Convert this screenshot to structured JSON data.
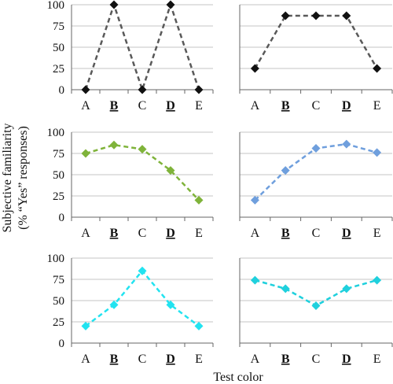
{
  "figure": {
    "xlabel": "Test color",
    "ylabel_line1": "Subjective familiarity",
    "ylabel_line2": "(% “Yes” responses)"
  },
  "chart_data": [
    {
      "type": "line",
      "categories": [
        "A",
        "B",
        "C",
        "D",
        "E"
      ],
      "emphasized_categories": [
        "B",
        "D"
      ],
      "ylim": [
        0,
        100
      ],
      "yticks": [
        0,
        25,
        50,
        75,
        100
      ],
      "grid": true,
      "series": [
        {
          "values": [
            0,
            100,
            0,
            100,
            0
          ],
          "color": "#595959"
        }
      ]
    },
    {
      "type": "line",
      "categories": [
        "A",
        "B",
        "C",
        "D",
        "E"
      ],
      "emphasized_categories": [
        "B",
        "D"
      ],
      "ylim": [
        0,
        100
      ],
      "yticks": [
        0,
        25,
        50,
        75,
        100
      ],
      "grid": true,
      "series": [
        {
          "values": [
            25,
            87,
            87,
            87,
            25
          ],
          "color": "#595959"
        }
      ]
    },
    {
      "type": "line",
      "categories": [
        "A",
        "B",
        "C",
        "D",
        "E"
      ],
      "emphasized_categories": [
        "B",
        "D"
      ],
      "ylim": [
        0,
        100
      ],
      "yticks": [
        0,
        25,
        50,
        75,
        100
      ],
      "grid": true,
      "series": [
        {
          "values": [
            75,
            85,
            80,
            55,
            20
          ],
          "color": "#7fb33a"
        }
      ]
    },
    {
      "type": "line",
      "categories": [
        "A",
        "B",
        "C",
        "D",
        "E"
      ],
      "emphasized_categories": [
        "B",
        "D"
      ],
      "ylim": [
        0,
        100
      ],
      "yticks": [
        0,
        25,
        50,
        75,
        100
      ],
      "grid": true,
      "series": [
        {
          "values": [
            20,
            55,
            81,
            86,
            76
          ],
          "color": "#6f9fdd"
        }
      ]
    },
    {
      "type": "line",
      "categories": [
        "A",
        "B",
        "C",
        "D",
        "E"
      ],
      "emphasized_categories": [
        "B",
        "D"
      ],
      "ylim": [
        0,
        100
      ],
      "yticks": [
        0,
        25,
        50,
        75,
        100
      ],
      "grid": true,
      "series": [
        {
          "values": [
            20,
            45,
            85,
            45,
            20
          ],
          "color": "#22e3f0"
        }
      ]
    },
    {
      "type": "line",
      "categories": [
        "A",
        "B",
        "C",
        "D",
        "E"
      ],
      "emphasized_categories": [
        "B",
        "D"
      ],
      "ylim": [
        0,
        100
      ],
      "yticks": [
        0,
        25,
        50,
        75,
        100
      ],
      "grid": true,
      "series": [
        {
          "values": [
            74,
            64,
            44,
            64,
            74
          ],
          "color": "#1fd0dd"
        }
      ]
    }
  ]
}
